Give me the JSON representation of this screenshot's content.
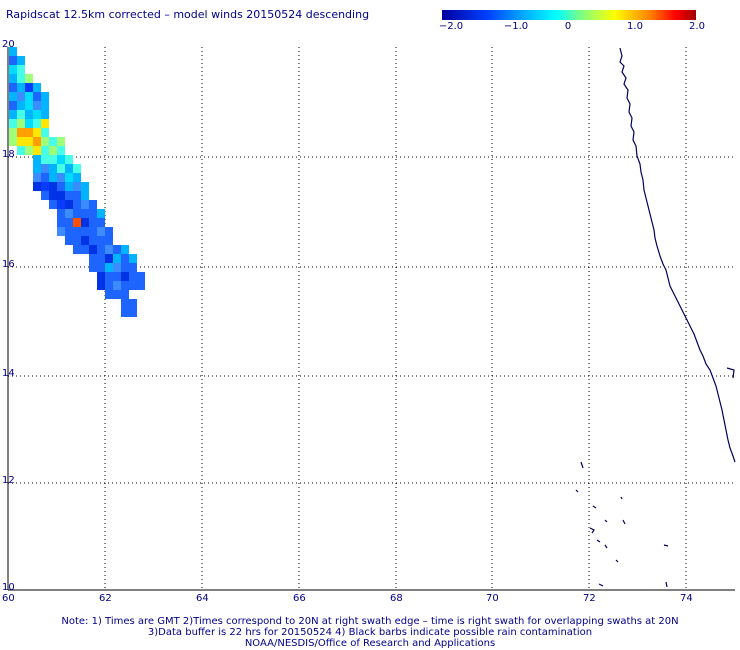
{
  "title": "Rapidscat 12.5km corrected – model winds 20150524 descending",
  "colorbar": {
    "labels": [
      "−2.0",
      "−1.0",
      "0",
      "1.0",
      "2.0"
    ],
    "min": -2.0,
    "max": 2.0
  },
  "map": {
    "x_ticks": [
      "60",
      "62",
      "64",
      "66",
      "68",
      "70",
      "72",
      "74"
    ],
    "y_ticks": [
      "20",
      "18",
      "16",
      "14",
      "12",
      "10"
    ],
    "lon_range": [
      60,
      75
    ],
    "lat_range": [
      10,
      20
    ]
  },
  "notes": [
    "Note: 1) Times are GMT 2)Times correspond to 20N at right swath edge – time is right swath for overlapping swaths at 20N",
    "3)Data buffer is 22 hrs for 20150524 4) Black barbs indicate possible rain contamination",
    "NOAA/NESDIS/Office of Research and Applications"
  ],
  "colors": {
    "text": "#00008b",
    "coast": "#000060",
    "grid": "#000000"
  }
}
